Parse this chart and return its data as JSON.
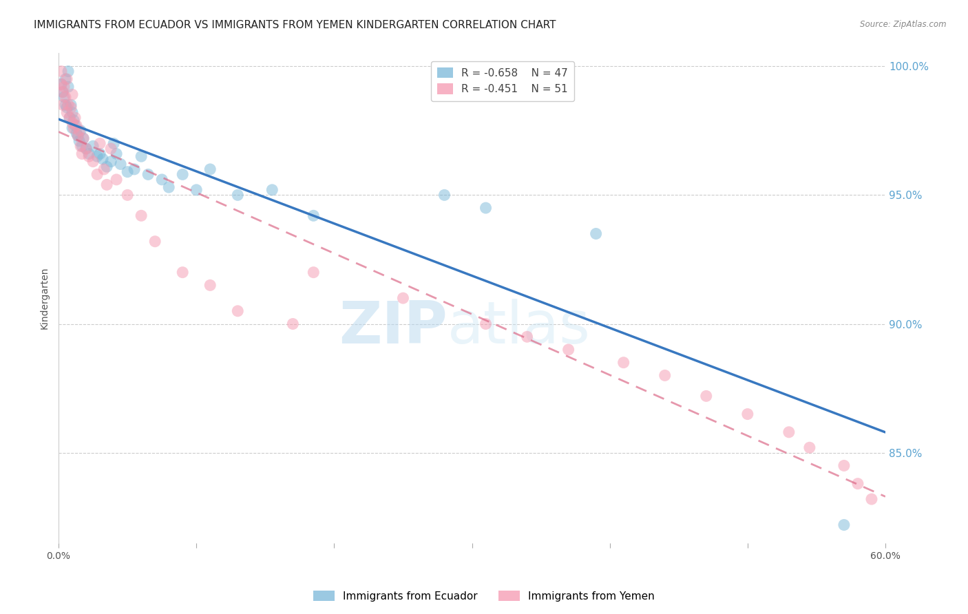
{
  "title": "IMMIGRANTS FROM ECUADOR VS IMMIGRANTS FROM YEMEN KINDERGARTEN CORRELATION CHART",
  "source": "Source: ZipAtlas.com",
  "ylabel_label": "Kindergarten",
  "xlim": [
    0.0,
    0.6
  ],
  "ylim": [
    0.815,
    1.005
  ],
  "xticks": [
    0.0,
    0.1,
    0.2,
    0.3,
    0.4,
    0.5,
    0.6
  ],
  "xticklabels": [
    "0.0%",
    "",
    "",
    "",
    "",
    "",
    "60.0%"
  ],
  "yticks": [
    0.85,
    0.9,
    0.95,
    1.0
  ],
  "yticklabels": [
    "85.0%",
    "90.0%",
    "95.0%",
    "100.0%"
  ],
  "ecuador_color": "#7ab8d9",
  "yemen_color": "#f599b0",
  "ecuador_line_color": "#3878c0",
  "yemen_line_color": "#d96080",
  "ecuador_R": -0.658,
  "ecuador_N": 47,
  "yemen_R": -0.451,
  "yemen_N": 51,
  "legend_labels": [
    "Immigrants from Ecuador",
    "Immigrants from Yemen"
  ],
  "watermark_zip": "ZIP",
  "watermark_atlas": "atlas",
  "background_color": "#ffffff",
  "grid_color": "#cccccc",
  "title_fontsize": 11,
  "axis_label_fontsize": 10,
  "tick_fontsize": 10,
  "legend_fontsize": 11,
  "right_axis_color": "#5ba3d0",
  "ecuador_scatter_x": [
    0.002,
    0.003,
    0.004,
    0.005,
    0.005,
    0.006,
    0.007,
    0.007,
    0.008,
    0.009,
    0.01,
    0.01,
    0.011,
    0.012,
    0.013,
    0.014,
    0.015,
    0.016,
    0.017,
    0.018,
    0.02,
    0.022,
    0.025,
    0.028,
    0.03,
    0.032,
    0.035,
    0.038,
    0.04,
    0.042,
    0.045,
    0.05,
    0.055,
    0.06,
    0.065,
    0.075,
    0.08,
    0.09,
    0.1,
    0.11,
    0.13,
    0.155,
    0.185,
    0.28,
    0.31,
    0.39,
    0.57
  ],
  "ecuador_scatter_y": [
    0.993,
    0.99,
    0.988,
    0.985,
    0.995,
    0.984,
    0.992,
    0.998,
    0.98,
    0.985,
    0.976,
    0.982,
    0.979,
    0.977,
    0.974,
    0.973,
    0.971,
    0.975,
    0.969,
    0.972,
    0.968,
    0.966,
    0.969,
    0.965,
    0.966,
    0.964,
    0.961,
    0.963,
    0.97,
    0.966,
    0.962,
    0.959,
    0.96,
    0.965,
    0.958,
    0.956,
    0.953,
    0.958,
    0.952,
    0.96,
    0.95,
    0.952,
    0.942,
    0.95,
    0.945,
    0.935,
    0.822
  ],
  "yemen_scatter_x": [
    0.002,
    0.002,
    0.003,
    0.003,
    0.004,
    0.005,
    0.006,
    0.006,
    0.007,
    0.008,
    0.009,
    0.01,
    0.01,
    0.011,
    0.012,
    0.013,
    0.014,
    0.015,
    0.016,
    0.017,
    0.018,
    0.02,
    0.022,
    0.025,
    0.028,
    0.03,
    0.033,
    0.035,
    0.038,
    0.042,
    0.05,
    0.06,
    0.07,
    0.09,
    0.11,
    0.13,
    0.17,
    0.185,
    0.25,
    0.31,
    0.34,
    0.37,
    0.41,
    0.44,
    0.47,
    0.5,
    0.53,
    0.545,
    0.57,
    0.58,
    0.59
  ],
  "yemen_scatter_y": [
    0.998,
    0.993,
    0.99,
    0.985,
    0.992,
    0.988,
    0.995,
    0.982,
    0.985,
    0.98,
    0.984,
    0.978,
    0.989,
    0.976,
    0.98,
    0.977,
    0.973,
    0.975,
    0.969,
    0.966,
    0.972,
    0.968,
    0.965,
    0.963,
    0.958,
    0.97,
    0.96,
    0.954,
    0.968,
    0.956,
    0.95,
    0.942,
    0.932,
    0.92,
    0.915,
    0.905,
    0.9,
    0.92,
    0.91,
    0.9,
    0.895,
    0.89,
    0.885,
    0.88,
    0.872,
    0.865,
    0.858,
    0.852,
    0.845,
    0.838,
    0.832
  ]
}
